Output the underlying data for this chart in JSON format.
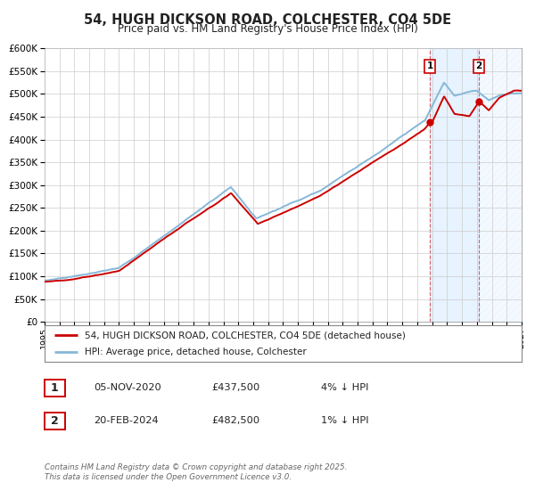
{
  "title": "54, HUGH DICKSON ROAD, COLCHESTER, CO4 5DE",
  "subtitle": "Price paid vs. HM Land Registry's House Price Index (HPI)",
  "xlim": [
    1995,
    2027
  ],
  "ylim": [
    0,
    600000
  ],
  "yticks": [
    0,
    50000,
    100000,
    150000,
    200000,
    250000,
    300000,
    350000,
    400000,
    450000,
    500000,
    550000,
    600000
  ],
  "xticks": [
    1995,
    1996,
    1997,
    1998,
    1999,
    2000,
    2001,
    2002,
    2003,
    2004,
    2005,
    2006,
    2007,
    2008,
    2009,
    2010,
    2011,
    2012,
    2013,
    2014,
    2015,
    2016,
    2017,
    2018,
    2019,
    2020,
    2021,
    2022,
    2023,
    2024,
    2025,
    2026,
    2027
  ],
  "hpi_color": "#85b8d8",
  "price_color": "#cc0000",
  "shade_color": "#ddeeff",
  "grid_color": "#cccccc",
  "sale1_x": 2020.85,
  "sale1_y": 437500,
  "sale2_x": 2024.12,
  "sale2_y": 482500,
  "vline1_x": 2020.85,
  "vline2_x": 2024.12,
  "legend_label_price": "54, HUGH DICKSON ROAD, COLCHESTER, CO4 5DE (detached house)",
  "legend_label_hpi": "HPI: Average price, detached house, Colchester",
  "table_rows": [
    {
      "label": "1",
      "date": "05-NOV-2020",
      "price": "£437,500",
      "hpi": "4% ↓ HPI"
    },
    {
      "label": "2",
      "date": "20-FEB-2024",
      "price": "£482,500",
      "hpi": "1% ↓ HPI"
    }
  ],
  "footer": "Contains HM Land Registry data © Crown copyright and database right 2025.\nThis data is licensed under the Open Government Licence v3.0.",
  "bg_color": "#ffffff"
}
